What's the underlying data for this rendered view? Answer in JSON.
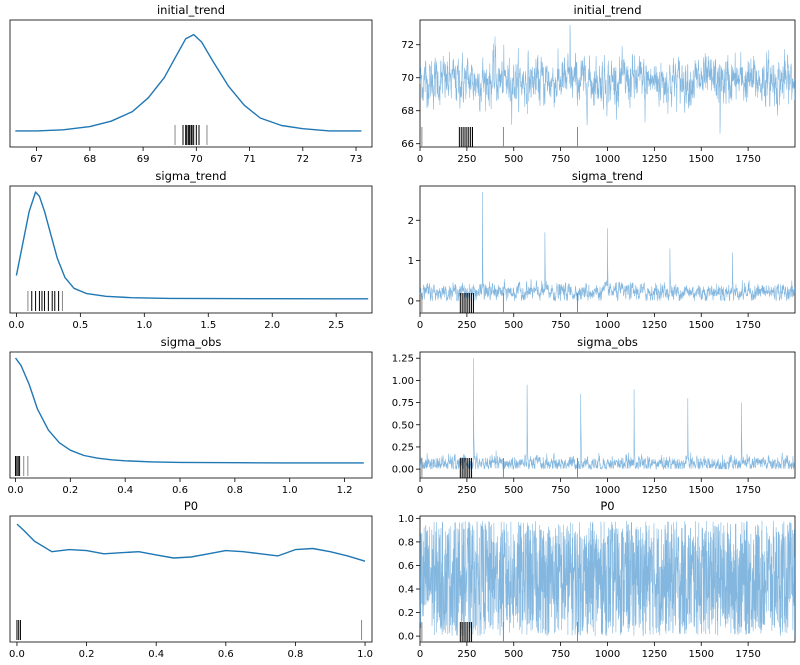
{
  "colors": {
    "kde": "#1f77b4",
    "trace": "#5a9fd4",
    "rug": "#000000"
  },
  "chart_data": [
    {
      "type": "line",
      "title": "initial_trend",
      "xlim": [
        66.5,
        73.3
      ],
      "xticks": [
        "67",
        "68",
        "69",
        "70",
        "71",
        "72",
        "73"
      ],
      "x": [
        66.6,
        67.0,
        67.5,
        68.0,
        68.4,
        68.8,
        69.1,
        69.4,
        69.6,
        69.8,
        69.95,
        70.1,
        70.3,
        70.6,
        70.9,
        71.2,
        71.6,
        72.0,
        72.5,
        73.1
      ],
      "y": [
        0.02,
        0.02,
        0.03,
        0.06,
        0.11,
        0.2,
        0.33,
        0.52,
        0.7,
        0.88,
        0.92,
        0.85,
        0.68,
        0.44,
        0.26,
        0.14,
        0.07,
        0.04,
        0.02,
        0.02
      ],
      "rug": [
        69.75,
        69.8,
        69.82,
        69.85,
        69.87,
        69.9,
        69.92,
        69.95,
        70.0,
        70.05
      ],
      "rug_grey": [
        69.6,
        70.2
      ]
    },
    {
      "type": "line",
      "title": "initial_trend",
      "xlim": [
        0,
        2000
      ],
      "ylim": [
        65.8,
        73.5
      ],
      "xticks": [
        "0",
        "250",
        "500",
        "750",
        "1000",
        "1250",
        "1500",
        "1750"
      ],
      "yticks": [
        "66",
        "68",
        "70",
        "72"
      ],
      "trace": {
        "draws": 2000,
        "center": 69.8,
        "spread": 0.8,
        "spikes": [
          72.5,
          73.2,
          67.3,
          66.6
        ]
      },
      "rug": [
        210,
        220,
        230,
        240,
        250,
        260,
        270,
        280
      ],
      "rug_grey": [
        10,
        445,
        840
      ]
    },
    {
      "type": "line",
      "title": "sigma_trend",
      "xlim": [
        -0.05,
        2.78
      ],
      "xticks": [
        "0.0",
        "0.5",
        "1.0",
        "1.5",
        "2.0",
        "2.5"
      ],
      "x": [
        0.0,
        0.05,
        0.1,
        0.15,
        0.18,
        0.22,
        0.27,
        0.32,
        0.38,
        0.45,
        0.55,
        0.7,
        0.9,
        1.2,
        1.6,
        2.0,
        2.5,
        2.75
      ],
      "y": [
        0.22,
        0.52,
        0.82,
        1.0,
        0.96,
        0.82,
        0.6,
        0.38,
        0.2,
        0.1,
        0.05,
        0.025,
        0.012,
        0.006,
        0.004,
        0.003,
        0.002,
        0.002
      ],
      "rug": [
        0.12,
        0.15,
        0.18,
        0.2,
        0.22,
        0.25,
        0.28,
        0.3,
        0.33
      ],
      "rug_grey": [
        0.09,
        0.36
      ]
    },
    {
      "type": "line",
      "title": "sigma_trend",
      "xlim": [
        0,
        2000
      ],
      "ylim": [
        -0.3,
        2.85
      ],
      "xticks": [
        "0",
        "250",
        "500",
        "750",
        "1000",
        "1250",
        "1500",
        "1750"
      ],
      "yticks": [
        "0",
        "1",
        "2"
      ],
      "trace": {
        "draws": 2000,
        "center": 0.22,
        "spread": 0.12,
        "spikes": [
          2.7,
          1.7,
          1.8,
          1.3,
          1.2
        ]
      },
      "rug": [
        215,
        225,
        235,
        245,
        255,
        265,
        275,
        285
      ],
      "rug_grey": [
        10,
        445,
        840
      ]
    },
    {
      "type": "line",
      "title": "sigma_obs",
      "xlim": [
        -0.02,
        1.3
      ],
      "xticks": [
        "0.0",
        "0.2",
        "0.4",
        "0.6",
        "0.8",
        "1.0",
        "1.2"
      ],
      "x": [
        0.0,
        0.02,
        0.05,
        0.08,
        0.12,
        0.16,
        0.2,
        0.25,
        0.3,
        0.35,
        0.4,
        0.5,
        0.6,
        0.8,
        1.0,
        1.27
      ],
      "y": [
        1.0,
        0.93,
        0.75,
        0.52,
        0.32,
        0.2,
        0.13,
        0.08,
        0.055,
        0.04,
        0.03,
        0.02,
        0.015,
        0.012,
        0.01,
        0.01
      ],
      "rug": [
        0.0,
        0.005,
        0.01,
        0.015
      ],
      "rug_grey": [
        0.03,
        0.045
      ]
    },
    {
      "type": "line",
      "title": "sigma_obs",
      "xlim": [
        0,
        2000
      ],
      "ylim": [
        -0.1,
        1.32
      ],
      "xticks": [
        "0",
        "250",
        "500",
        "750",
        "1000",
        "1250",
        "1500",
        "1750"
      ],
      "yticks": [
        "0.00",
        "0.25",
        "0.50",
        "0.75",
        "1.00",
        "1.25"
      ],
      "trace": {
        "draws": 2000,
        "center": 0.06,
        "spread": 0.05,
        "spikes": [
          1.25,
          0.95,
          0.85,
          0.9,
          0.8,
          0.75
        ]
      },
      "rug": [
        215,
        225,
        235,
        245,
        255,
        265,
        275
      ],
      "rug_grey": [
        10,
        445,
        840
      ]
    },
    {
      "type": "line",
      "title": "P0",
      "xlim": [
        -0.02,
        1.02
      ],
      "xticks": [
        "0.0",
        "0.2",
        "0.4",
        "0.6",
        "0.8",
        "1.0"
      ],
      "x": [
        0.0,
        0.02,
        0.05,
        0.1,
        0.15,
        0.2,
        0.25,
        0.3,
        0.35,
        0.4,
        0.45,
        0.5,
        0.55,
        0.6,
        0.65,
        0.7,
        0.75,
        0.8,
        0.85,
        0.9,
        0.95,
        1.0
      ],
      "y": [
        0.98,
        0.92,
        0.82,
        0.72,
        0.74,
        0.73,
        0.7,
        0.71,
        0.72,
        0.69,
        0.66,
        0.67,
        0.7,
        0.73,
        0.72,
        0.7,
        0.68,
        0.74,
        0.75,
        0.72,
        0.68,
        0.63
      ],
      "rug": [
        0.0,
        0.005,
        0.01
      ],
      "rug_grey": [
        0.99
      ]
    },
    {
      "type": "line",
      "title": "P0",
      "xlim": [
        0,
        2000
      ],
      "ylim": [
        -0.05,
        1.02
      ],
      "xticks": [
        "0",
        "250",
        "500",
        "750",
        "1000",
        "1250",
        "1500",
        "1750"
      ],
      "yticks": [
        "0.0",
        "0.2",
        "0.4",
        "0.6",
        "0.8",
        "1.0"
      ],
      "trace": {
        "draws": 2000,
        "center": 0.5,
        "spread": 0.3,
        "uniform": true,
        "spikes": []
      },
      "rug": [
        215,
        225,
        235,
        245,
        255,
        265,
        275
      ],
      "rug_grey": [
        10,
        445,
        840
      ]
    }
  ]
}
